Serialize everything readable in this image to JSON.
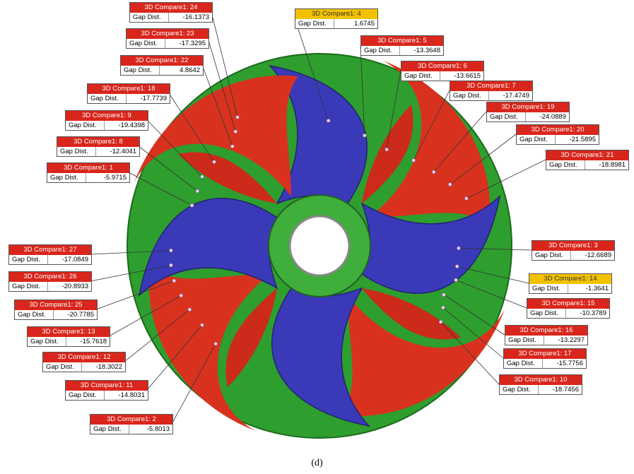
{
  "labels": [
    {
      "title": "3D Compare1: 24",
      "field": "Gap Dist.",
      "value": "-16.1373"
    },
    {
      "title": "3D Compare1: 23",
      "field": "Gap Dist.",
      "value": "-17.3295"
    },
    {
      "title": "3D Compare1: 22",
      "field": "Gap Dist.",
      "value": "4.8642"
    },
    {
      "title": "3D Compare1: 4",
      "field": "Gap Dist.",
      "value": "1.6745"
    },
    {
      "title": "3D Compare1: 5",
      "field": "Gap Dist.",
      "value": "-13.3648"
    },
    {
      "title": "3D Compare1: 6",
      "field": "Gap Dist.",
      "value": "-13.6615"
    },
    {
      "title": "3D Compare1: 7",
      "field": "Gap Dist.",
      "value": "-17.4749"
    },
    {
      "title": "3D Compare1: 19",
      "field": "Gap Dist.",
      "value": "-24.0889"
    },
    {
      "title": "3D Compare1: 20",
      "field": "Gap Dist.",
      "value": "-21.5895"
    },
    {
      "title": "3D Compare1: 21",
      "field": "Gap Dist.",
      "value": "-18.8981"
    },
    {
      "title": "3D Compare1: 18",
      "field": "Gap Dist.",
      "value": "-17.7739"
    },
    {
      "title": "3D Compare1: 9",
      "field": "Gap Dist.",
      "value": "-19.4398"
    },
    {
      "title": "3D Compare1: 8",
      "field": "Gap Dist.",
      "value": "-12.4041"
    },
    {
      "title": "3D Compare1: 1",
      "field": "Gap Dist.",
      "value": "-5.9715"
    },
    {
      "title": "3D Compare1: 3",
      "field": "Gap Dist.",
      "value": "-12.6689"
    },
    {
      "title": "3D Compare1: 14",
      "field": "Gap Dist.",
      "value": "-1.3641"
    },
    {
      "title": "3D Compare1: 15",
      "field": "Gap Dist.",
      "value": "-10.3789"
    },
    {
      "title": "3D Compare1: 16",
      "field": "Gap Dist.",
      "value": "-13.2297"
    },
    {
      "title": "3D Compare1: 17",
      "field": "Gap Dist.",
      "value": "-15.7756"
    },
    {
      "title": "3D Compare1: 10",
      "field": "Gap Dist.",
      "value": "-18.7456"
    },
    {
      "title": "3D Compare1: 27",
      "field": "Gap Dist.",
      "value": "-17.0849"
    },
    {
      "title": "3D Compare1: 26",
      "field": "Gap Dist.",
      "value": "-20.8933"
    },
    {
      "title": "3D Compare1: 25",
      "field": "Gap Dist.",
      "value": "-20.7785"
    },
    {
      "title": "3D Compare1: 13",
      "field": "Gap Dist.",
      "value": "-15.7618"
    },
    {
      "title": "3D Compare1: 12",
      "field": "Gap Dist.",
      "value": "-18.3022"
    },
    {
      "title": "3D Compare1: 11",
      "field": "Gap Dist.",
      "value": "-14.8031"
    },
    {
      "title": "3D Compare1: 2",
      "field": "Gap Dist.",
      "value": "-5.8013"
    }
  ],
  "caption": "(d)"
}
